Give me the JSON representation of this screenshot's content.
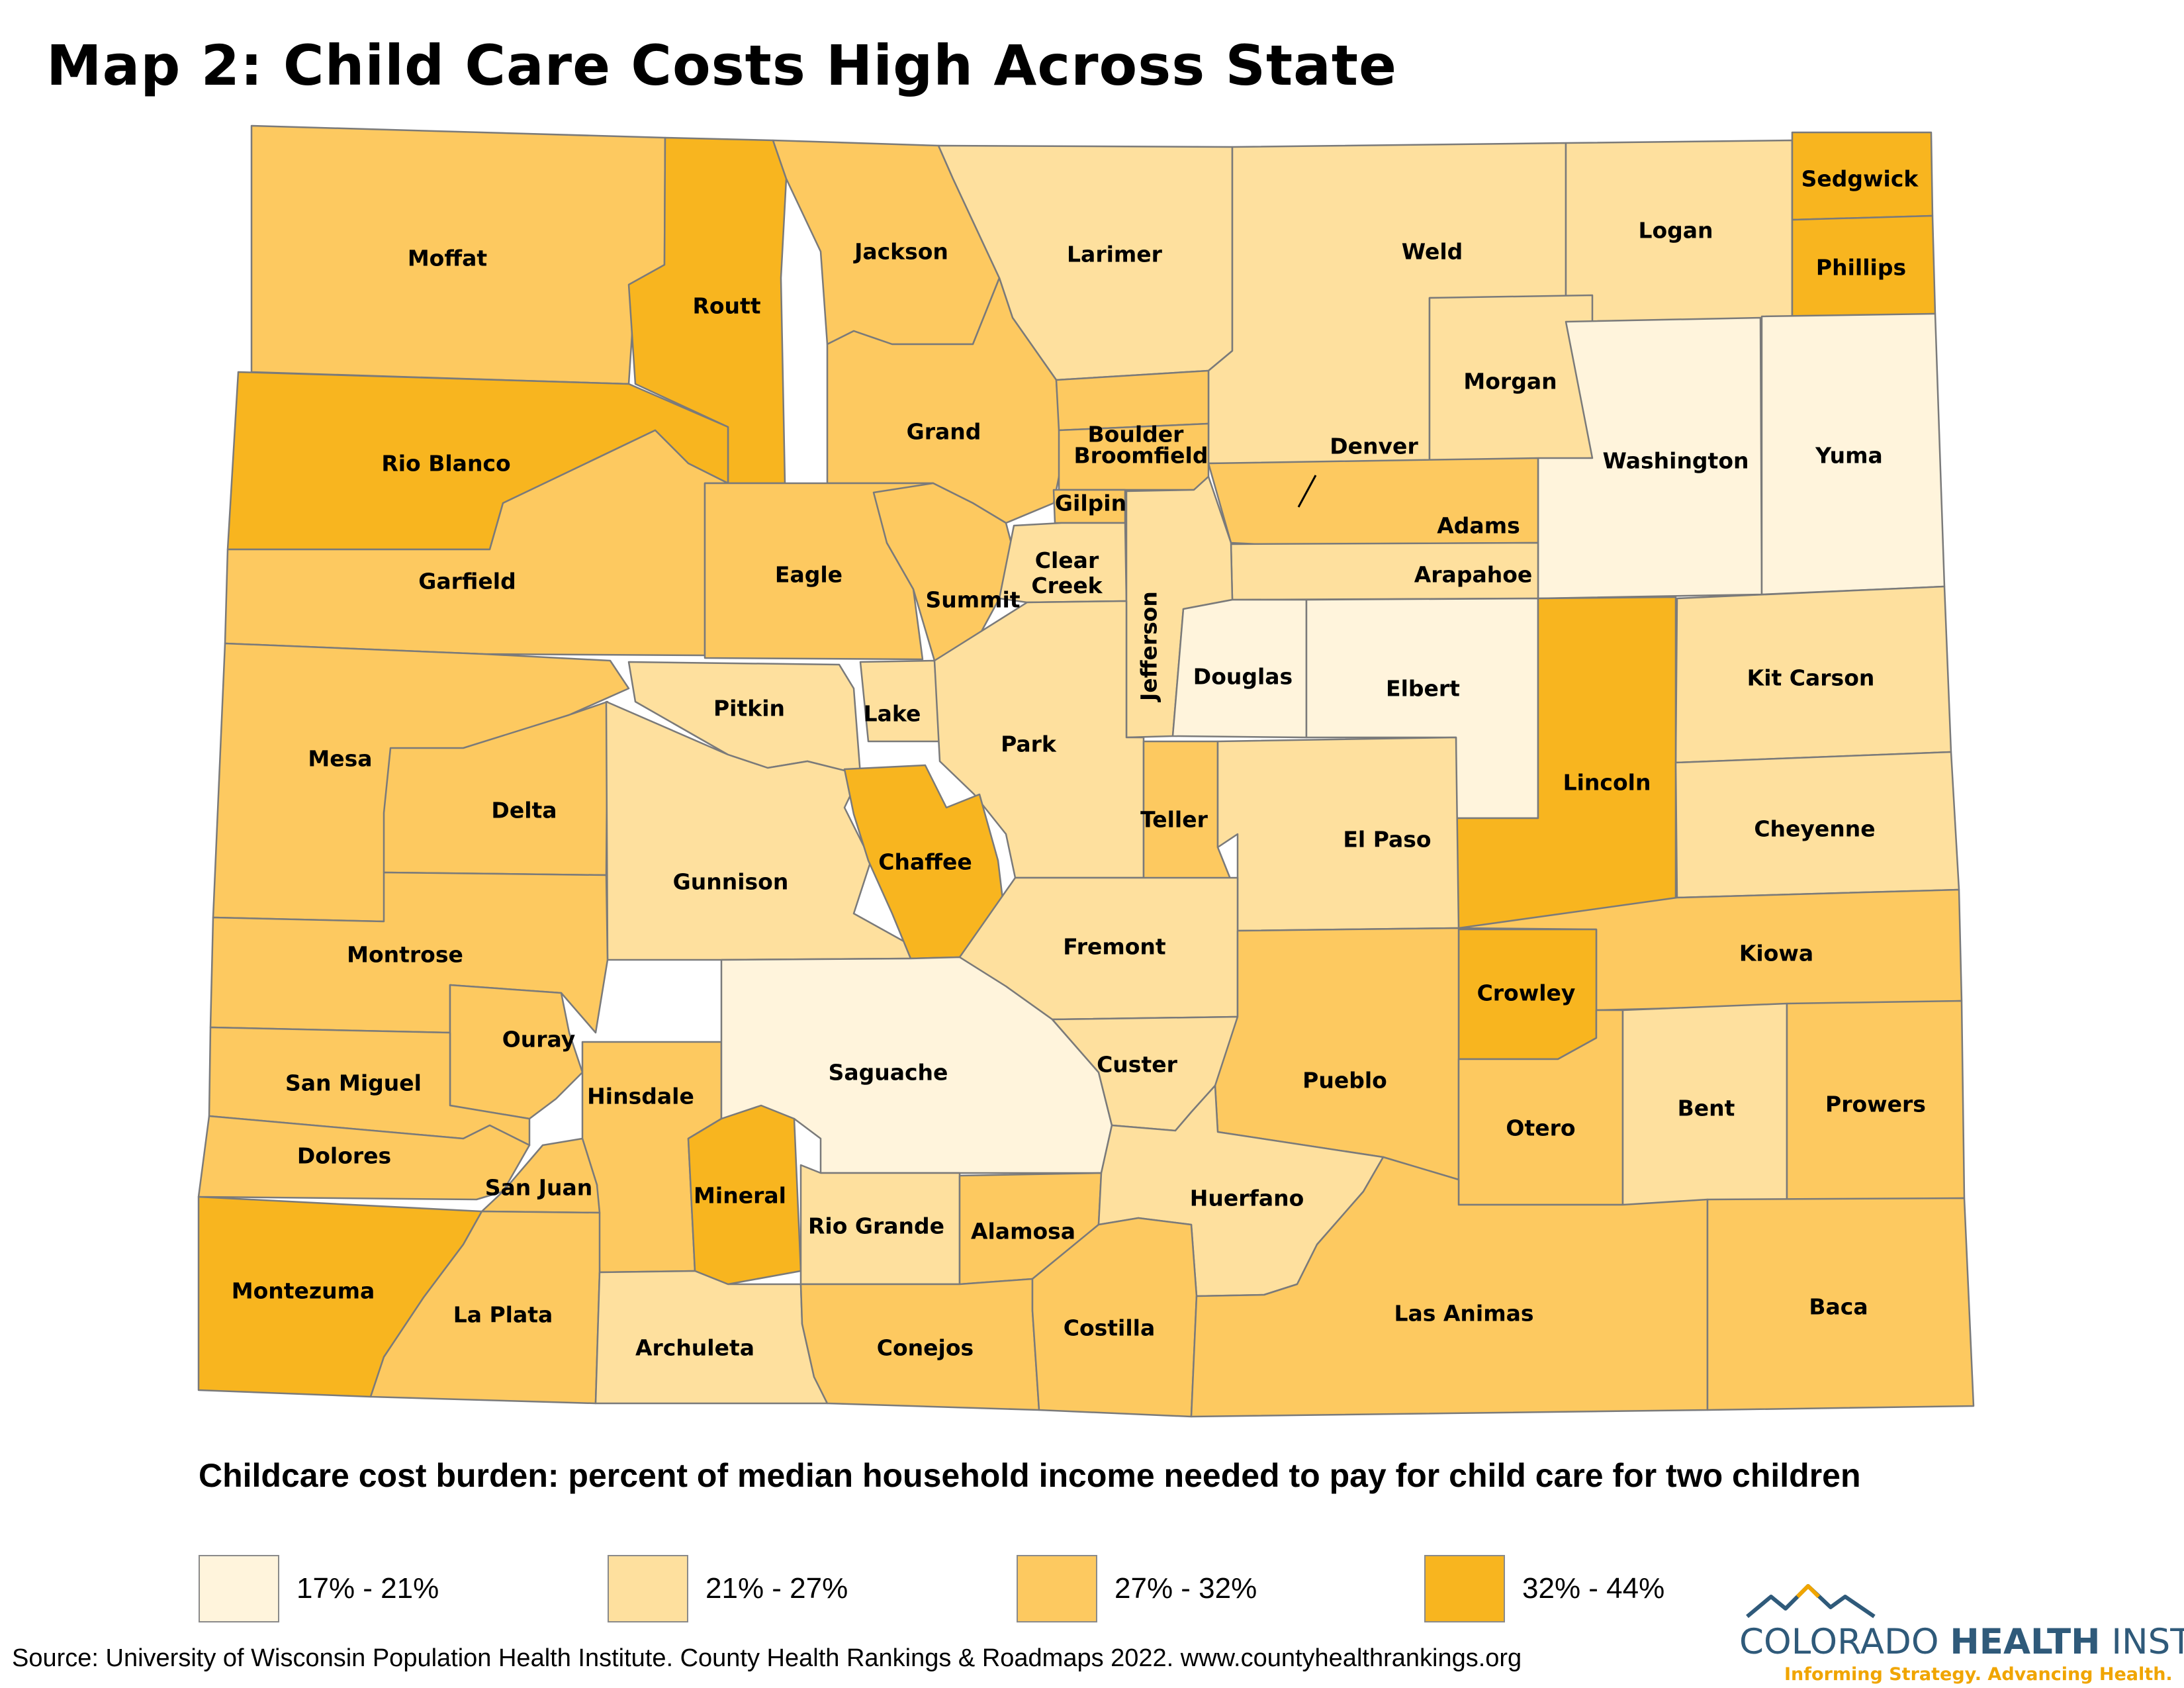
{
  "title": "Map 2: Child Care Costs High Across State",
  "legend": {
    "title": "Childcare cost burden: percent of median household income needed to pay for child care for two children",
    "items": [
      {
        "label": "17% - 21%",
        "color": "#fff4dc"
      },
      {
        "label": "21% - 27%",
        "color": "#fee09e"
      },
      {
        "label": "27% - 32%",
        "color": "#fdc960"
      },
      {
        "label": "32% - 44%",
        "color": "#f8b51f"
      }
    ]
  },
  "counties": [
    {
      "name": "Moffat",
      "bin": 2
    },
    {
      "name": "Routt",
      "bin": 3
    },
    {
      "name": "Jackson",
      "bin": 2
    },
    {
      "name": "Larimer",
      "bin": 1
    },
    {
      "name": "Weld",
      "bin": 1
    },
    {
      "name": "Logan",
      "bin": 1
    },
    {
      "name": "Sedgwick",
      "bin": 3
    },
    {
      "name": "Phillips",
      "bin": 3
    },
    {
      "name": "Rio Blanco",
      "bin": 3
    },
    {
      "name": "Grand",
      "bin": 2
    },
    {
      "name": "Boulder",
      "bin": 2
    },
    {
      "name": "Broomfield",
      "bin": 2
    },
    {
      "name": "Morgan",
      "bin": 1
    },
    {
      "name": "Washington",
      "bin": 0
    },
    {
      "name": "Yuma",
      "bin": 0
    },
    {
      "name": "Garfield",
      "bin": 2
    },
    {
      "name": "Eagle",
      "bin": 2
    },
    {
      "name": "Summit",
      "bin": 2
    },
    {
      "name": "Gilpin",
      "bin": 2
    },
    {
      "name": "Clear Creek",
      "bin": 1
    },
    {
      "name": "Denver",
      "bin": 2
    },
    {
      "name": "Adams",
      "bin": 2
    },
    {
      "name": "Arapahoe",
      "bin": 1
    },
    {
      "name": "Jefferson",
      "bin": 1
    },
    {
      "name": "Douglas",
      "bin": 0
    },
    {
      "name": "Elbert",
      "bin": 0
    },
    {
      "name": "Kit Carson",
      "bin": 1
    },
    {
      "name": "Mesa",
      "bin": 2
    },
    {
      "name": "Pitkin",
      "bin": 1
    },
    {
      "name": "Lake",
      "bin": 1
    },
    {
      "name": "Park",
      "bin": 1
    },
    {
      "name": "Lincoln",
      "bin": 3
    },
    {
      "name": "Delta",
      "bin": 2
    },
    {
      "name": "Gunnison",
      "bin": 1
    },
    {
      "name": "Chaffee",
      "bin": 3
    },
    {
      "name": "Teller",
      "bin": 2
    },
    {
      "name": "El Paso",
      "bin": 1
    },
    {
      "name": "Cheyenne",
      "bin": 1
    },
    {
      "name": "Montrose",
      "bin": 2
    },
    {
      "name": "Fremont",
      "bin": 1
    },
    {
      "name": "Kiowa",
      "bin": 2
    },
    {
      "name": "Crowley",
      "bin": 3
    },
    {
      "name": "Ouray",
      "bin": 2
    },
    {
      "name": "San Miguel",
      "bin": 2
    },
    {
      "name": "Hinsdale",
      "bin": 2
    },
    {
      "name": "Saguache",
      "bin": 0
    },
    {
      "name": "Custer",
      "bin": 1
    },
    {
      "name": "Pueblo",
      "bin": 2
    },
    {
      "name": "Otero",
      "bin": 2
    },
    {
      "name": "Bent",
      "bin": 1
    },
    {
      "name": "Prowers",
      "bin": 2
    },
    {
      "name": "Dolores",
      "bin": 2
    },
    {
      "name": "San Juan",
      "bin": 2
    },
    {
      "name": "Mineral",
      "bin": 3
    },
    {
      "name": "Rio Grande",
      "bin": 1
    },
    {
      "name": "Alamosa",
      "bin": 2
    },
    {
      "name": "Huerfano",
      "bin": 1
    },
    {
      "name": "Montezuma",
      "bin": 3
    },
    {
      "name": "La Plata",
      "bin": 2
    },
    {
      "name": "Archuleta",
      "bin": 1
    },
    {
      "name": "Conejos",
      "bin": 2
    },
    {
      "name": "Costilla",
      "bin": 2
    },
    {
      "name": "Las Animas",
      "bin": 2
    },
    {
      "name": "Baca",
      "bin": 2
    }
  ],
  "source": "Source: University of Wisconsin Population Health Institute. County Health Rankings & Roadmaps 2022. www.countyhealthrankings.org",
  "logo": {
    "name_regular": "COLORADO ",
    "name_bold": "HEALTH",
    "name_suffix": " INSTITUTE",
    "tagline": "Informing Strategy. Advancing Health.",
    "colors": {
      "text": "#2f5a7a",
      "accent": "#f0a500"
    }
  }
}
